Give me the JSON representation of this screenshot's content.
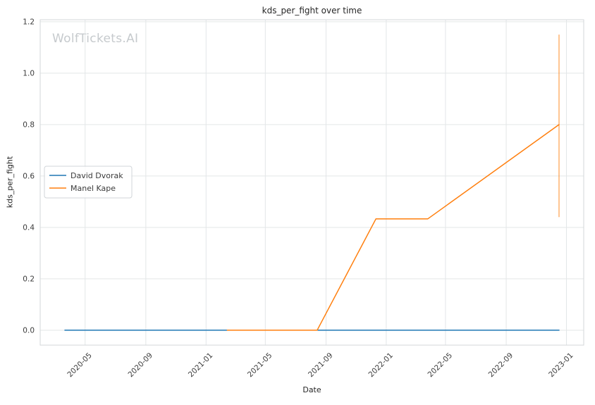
{
  "watermark": "WolfTickets.AI",
  "chart_data": {
    "type": "line",
    "title": "kds_per_fight over time",
    "xlabel": "Date",
    "ylabel": "kds_per_fight",
    "grid": true,
    "legend_position": "center-left",
    "xlim": [
      "2020-01-31",
      "2023-02-05"
    ],
    "ylim": [
      -0.058,
      1.208
    ],
    "x_tick_labels": [
      "2020-05",
      "2020-09",
      "2021-01",
      "2021-05",
      "2021-09",
      "2022-01",
      "2022-05",
      "2022-09",
      "2023-01"
    ],
    "y_tick_values": [
      0.0,
      0.2,
      0.4,
      0.6,
      0.8,
      1.0,
      1.2
    ],
    "series": [
      {
        "name": "David Dvorak",
        "color": "#1f77b4",
        "points": [
          [
            "2020-03-21",
            0.0
          ],
          [
            "2022-12-17",
            0.0
          ]
        ]
      },
      {
        "name": "Manel Kape",
        "color": "#ff7f0e",
        "points": [
          [
            "2021-02-13",
            0.0
          ],
          [
            "2021-08-14",
            0.0
          ],
          [
            "2021-12-11",
            0.433
          ],
          [
            "2022-03-26",
            0.433
          ],
          [
            "2022-12-17",
            0.8
          ]
        ]
      }
    ],
    "annotations": [
      {
        "type": "vertical-segment",
        "x": "2022-12-17",
        "y_from": 0.44,
        "y_to": 1.15,
        "color": "#ff7f0e"
      }
    ]
  }
}
